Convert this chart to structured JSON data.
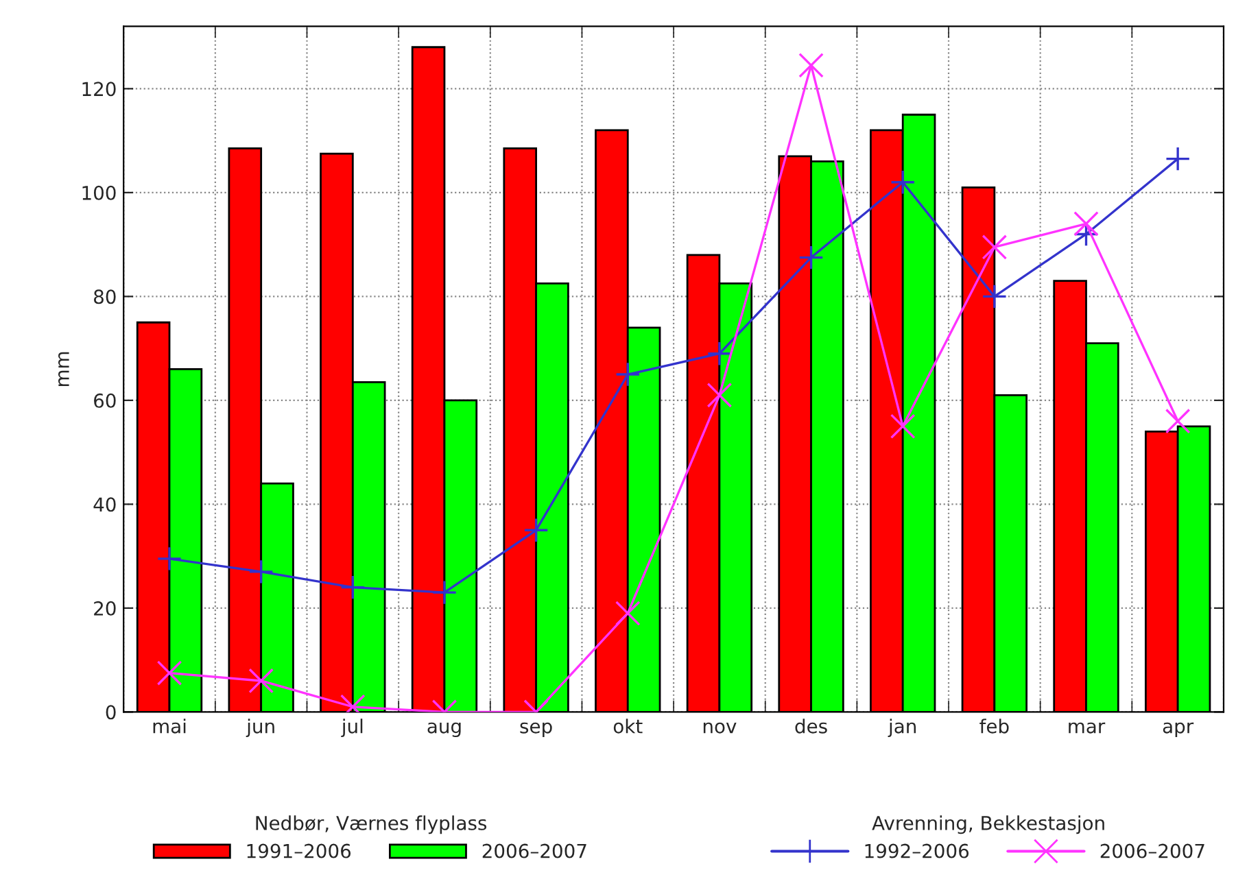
{
  "chart_data": {
    "type": "bar",
    "ylabel": "mm",
    "categories": [
      "mai",
      "jun",
      "jul",
      "aug",
      "sep",
      "okt",
      "nov",
      "des",
      "jan",
      "feb",
      "mar",
      "apr"
    ],
    "legend_title": [
      "Nedbør, Værnes flyplass",
      "Avrenning, Bekkestasjon"
    ],
    "series": [
      {
        "name": "1991–2006",
        "color": "#ff0000",
        "values": [
          75,
          108.5,
          107.5,
          128,
          108.5,
          112,
          88,
          107,
          112,
          101,
          83,
          54
        ]
      },
      {
        "name": "2006–2007",
        "color": "#00ff00",
        "values": [
          66,
          44,
          63.5,
          60,
          82.5,
          74,
          82.5,
          106,
          115,
          61,
          71,
          55
        ]
      },
      {
        "type": "line",
        "name": "1992–2006",
        "color": "#3333cc",
        "marker": "plus",
        "values": [
          29.5,
          27,
          24,
          23,
          35,
          65,
          69,
          87.5,
          102,
          80,
          92,
          106.5
        ]
      },
      {
        "type": "line",
        "name": "2006–2007",
        "color": "#ff33ff",
        "marker": "cross",
        "values": [
          7.5,
          6,
          1,
          0,
          0,
          19,
          61,
          124.5,
          55,
          89.5,
          94,
          56
        ]
      }
    ],
    "ylim": [
      0,
      132
    ],
    "yticks": [
      0,
      20,
      40,
      60,
      80,
      100,
      120
    ],
    "grid": true,
    "legend": "bottom"
  }
}
